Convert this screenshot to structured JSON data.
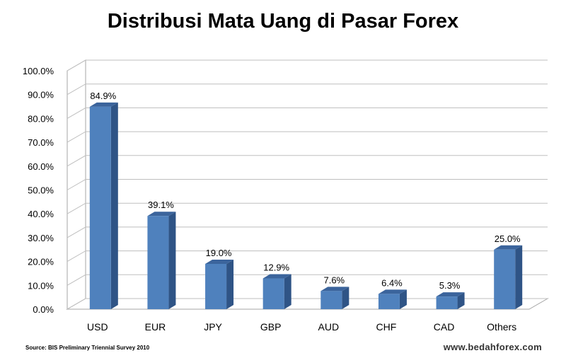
{
  "chart_data": {
    "type": "bar",
    "title": "Distribusi Mata Uang di Pasar Forex",
    "categories": [
      "USD",
      "EUR",
      "JPY",
      "GBP",
      "AUD",
      "CHF",
      "CAD",
      "Others"
    ],
    "values": [
      84.9,
      39.1,
      19.0,
      12.9,
      7.6,
      6.4,
      5.3,
      25.0
    ],
    "data_labels": [
      "84.9%",
      "39.1%",
      "19.0%",
      "12.9%",
      "7.6%",
      "6.4%",
      "5.3%",
      "25.0%"
    ],
    "yticks": [
      "0.0%",
      "10.0%",
      "20.0%",
      "30.0%",
      "40.0%",
      "50.0%",
      "60.0%",
      "70.0%",
      "80.0%",
      "90.0%",
      "100.0%"
    ],
    "ylim": [
      0,
      100
    ],
    "xlabel": "",
    "ylabel": "",
    "grid": true,
    "style": "3d-columns",
    "colors": {
      "bar_front": "#4F81BD",
      "bar_side": "#2F5486",
      "bar_top": "#3B649C",
      "gridline": "#BFBFBF",
      "wall": "#FFFFFF"
    }
  },
  "footer": {
    "source": "Source: BIS Preliminary Triennial Survey  2010",
    "watermark": "www.bedahforex.com"
  }
}
